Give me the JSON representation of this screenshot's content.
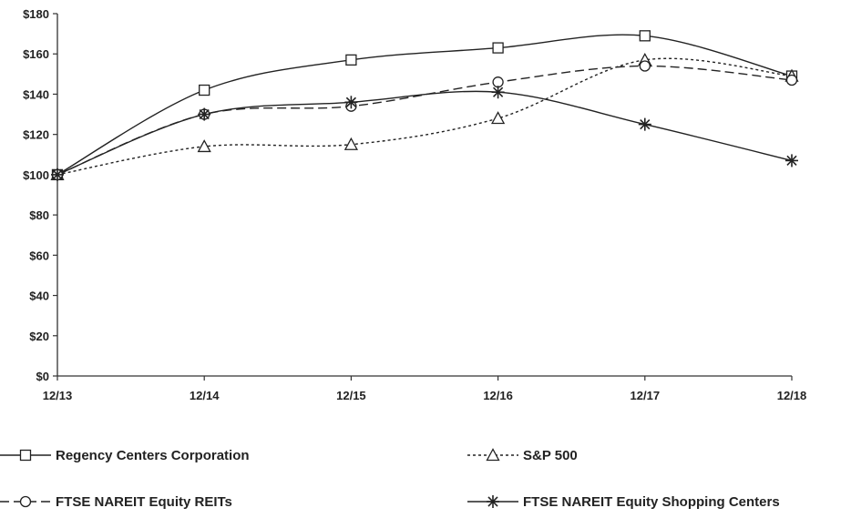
{
  "chart_data": {
    "type": "line",
    "x": [
      "12/13",
      "12/14",
      "12/15",
      "12/16",
      "12/17",
      "12/18"
    ],
    "ylim": [
      0,
      180
    ],
    "y_ticks": [
      "$0",
      "$20",
      "$40",
      "$60",
      "$80",
      "$100",
      "$120",
      "$140",
      "$160",
      "$180"
    ],
    "grid": false,
    "legend_position": "bottom",
    "series": [
      {
        "name": "Regency Centers Corporation",
        "values": [
          100,
          142,
          157,
          163,
          169,
          149
        ],
        "marker": "square",
        "dash": "solid",
        "color": "#222222"
      },
      {
        "name": "S&P 500",
        "values": [
          100,
          114,
          115,
          128,
          157,
          149
        ],
        "marker": "triangle",
        "dash": "dotted",
        "color": "#222222"
      },
      {
        "name": "FTSE NAREIT Equity REITs",
        "values": [
          100,
          130,
          134,
          146,
          154,
          147
        ],
        "marker": "circle",
        "dash": "dashed",
        "color": "#222222"
      },
      {
        "name": "FTSE NAREIT Equity Shopping Centers",
        "values": [
          100,
          130,
          136,
          141,
          125,
          107
        ],
        "marker": "star",
        "dash": "solid",
        "color": "#222222"
      }
    ]
  }
}
